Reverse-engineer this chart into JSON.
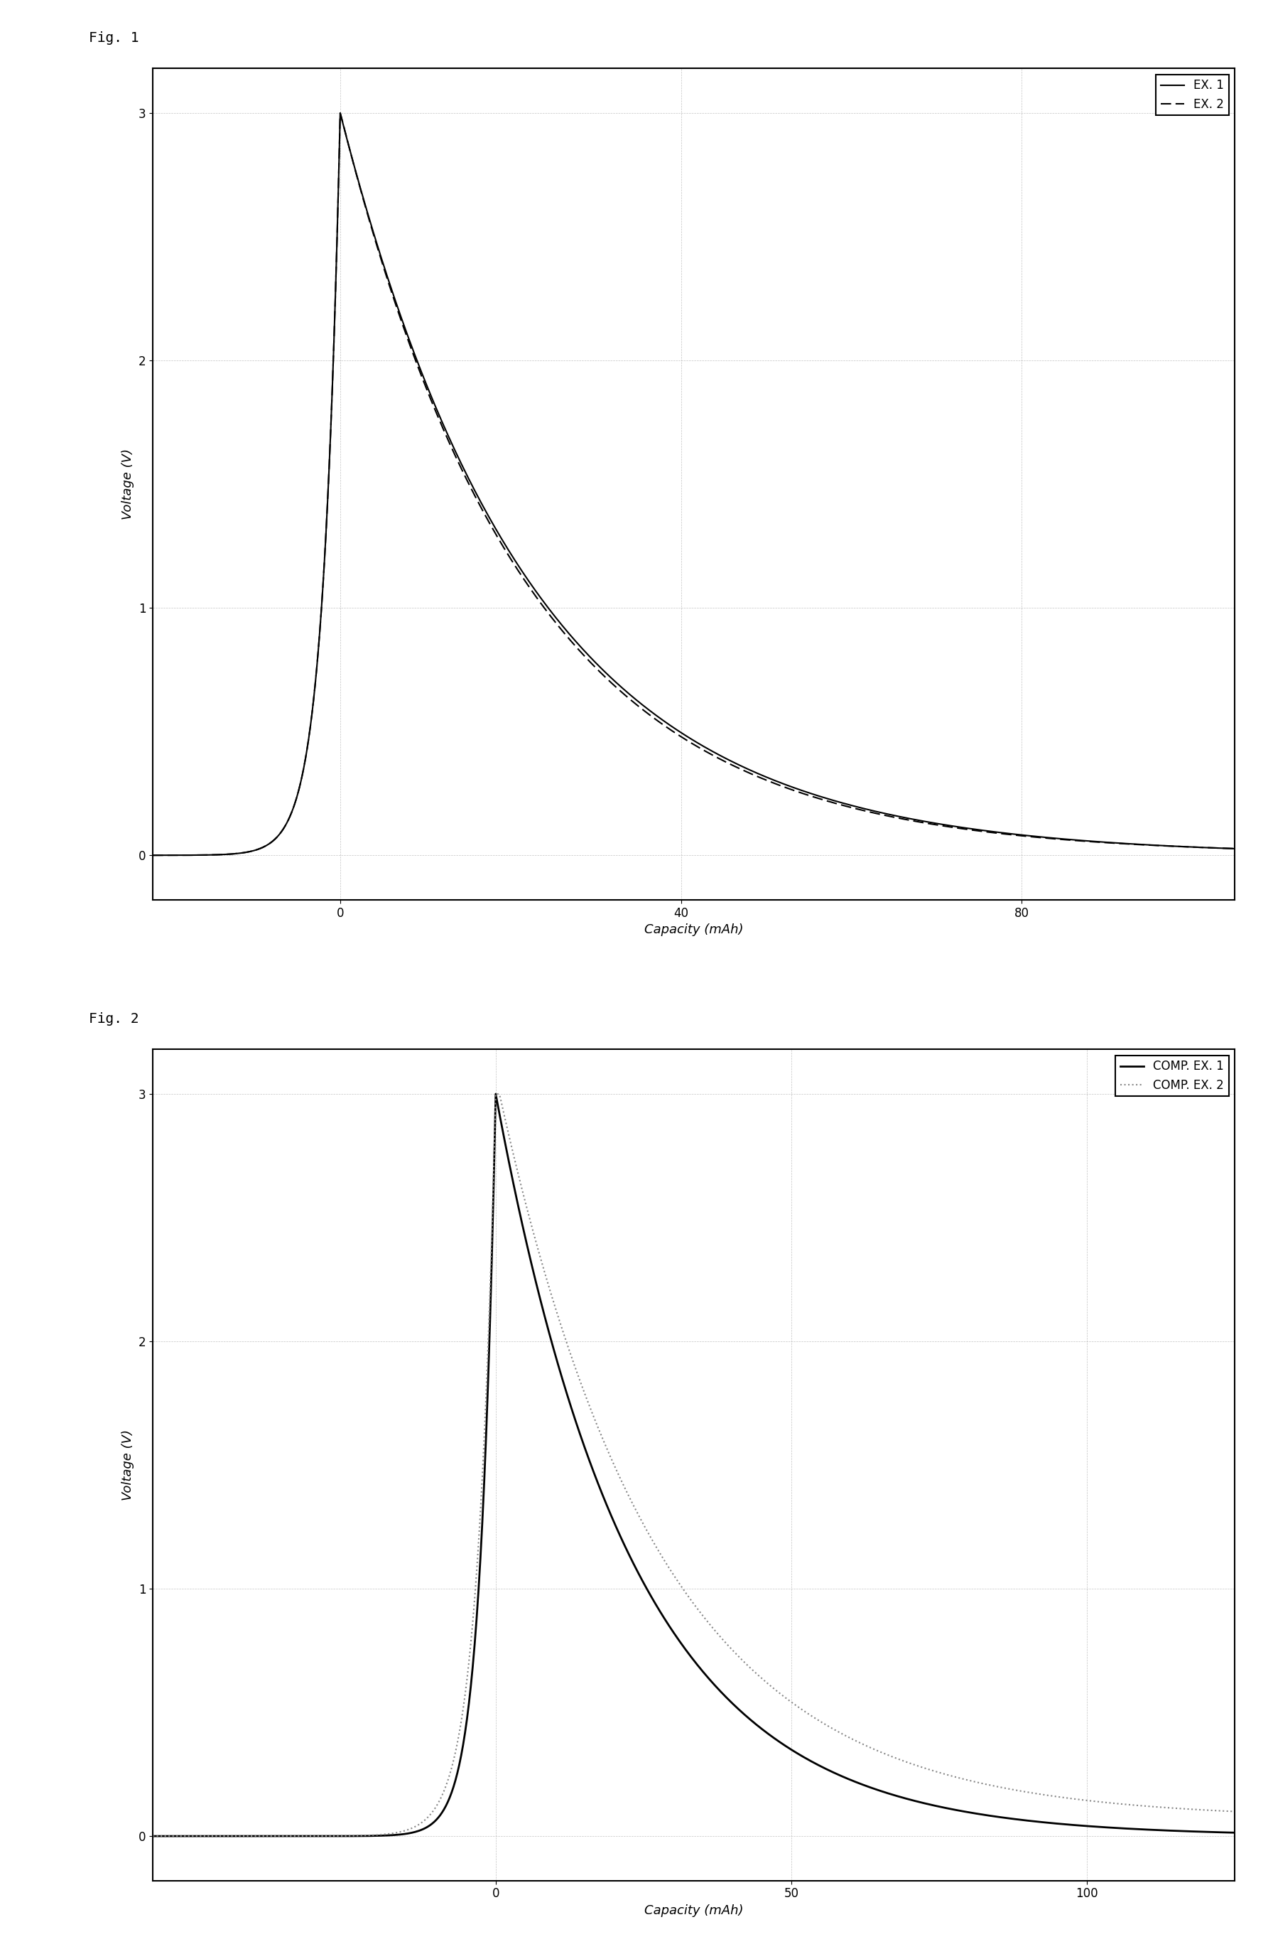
{
  "fig1_title": "Fig. 1",
  "fig2_title": "Fig. 2",
  "fig1_xlabel": "Capacity (mAh)",
  "fig2_xlabel": "Capacity (mAh)",
  "fig1_ylabel": "Voltage (V)",
  "fig2_ylabel": "Voltage (V)",
  "fig1_xlim": [
    -22,
    105
  ],
  "fig1_ylim": [
    -0.18,
    3.18
  ],
  "fig2_xlim": [
    -58,
    125
  ],
  "fig2_ylim": [
    -0.18,
    3.18
  ],
  "fig1_xticks": [
    0,
    40,
    80
  ],
  "fig1_yticks": [
    0,
    1,
    2,
    3
  ],
  "fig2_xticks": [
    0,
    50,
    100
  ],
  "fig2_yticks": [
    0,
    1,
    2,
    3
  ],
  "legend1_labels": [
    "EX. 1",
    "EX. 2"
  ],
  "legend2_labels": [
    "COMP. EX. 1",
    "COMP. EX. 2"
  ],
  "line_color": "#000000",
  "comp2_color": "#888888",
  "background_color": "#ffffff",
  "grid_color": "#aaaaaa",
  "fig1_title_fontsize": 14,
  "fig2_title_fontsize": 14,
  "axis_fontsize": 13,
  "tick_fontsize": 12,
  "legend_fontsize": 12
}
